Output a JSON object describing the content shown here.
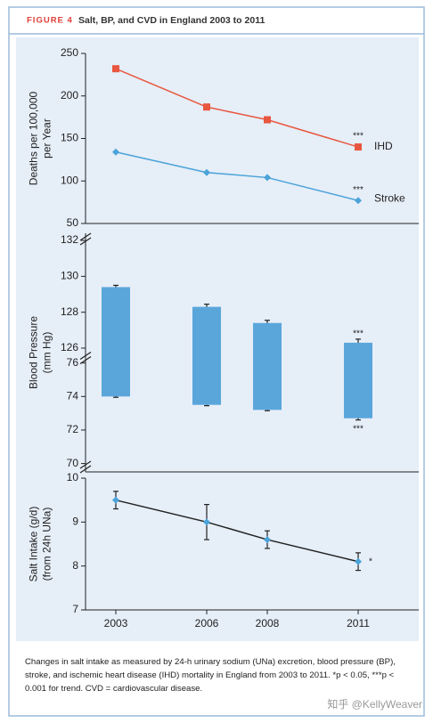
{
  "figure": {
    "label": "FIGURE 4",
    "title": "Salt, BP, and CVD in England 2003 to 2011"
  },
  "chart_data": [
    {
      "type": "line",
      "ylabel": [
        "Deaths per 100,000",
        "per Year"
      ],
      "x": [
        2003,
        2006,
        2008,
        2011
      ],
      "xlim": [
        2002,
        2013
      ],
      "ylim": [
        50,
        250
      ],
      "yticks": [
        50,
        100,
        150,
        200,
        250
      ],
      "series": [
        {
          "name": "IHD",
          "color": "#e8573f",
          "marker": "square",
          "values": [
            232,
            187,
            172,
            140
          ],
          "annotation": "***"
        },
        {
          "name": "Stroke",
          "color": "#4aa3d9",
          "marker": "diamond",
          "values": [
            134,
            110,
            104,
            77
          ],
          "annotation": "***"
        }
      ]
    },
    {
      "type": "floating_bar",
      "ylabel": [
        "Blood Pressure",
        "(mm Hg)"
      ],
      "x": [
        2003,
        2006,
        2008,
        2011
      ],
      "xlim": [
        2002,
        2013
      ],
      "ylim": [
        125.7,
        132.4
      ],
      "yticks": [
        126,
        128,
        130,
        132
      ],
      "ylim_lower": [
        69.5,
        76.3
      ],
      "yticks_lower": [
        70,
        72,
        74,
        76
      ],
      "color": "#5aa6db",
      "series": [
        {
          "values": [
            129.4,
            128.3,
            127.4,
            126.3
          ],
          "errors": [
            0.1,
            0.15,
            0.15,
            0.2
          ]
        },
        {
          "values": [
            74.0,
            73.5,
            73.2,
            72.7
          ],
          "errors": [
            0.05,
            0.05,
            0.05,
            0.1
          ]
        }
      ],
      "annotations": [
        "***",
        "***"
      ]
    },
    {
      "type": "line",
      "ylabel": [
        "Salt Intake (g/d)",
        "(from 24h UNa)"
      ],
      "x": [
        2003,
        2006,
        2008,
        2011
      ],
      "xlim": [
        2002,
        2013
      ],
      "xticks": [
        2003,
        2006,
        2008,
        2011
      ],
      "ylim": [
        7,
        10
      ],
      "yticks": [
        7,
        8,
        9,
        10
      ],
      "series": [
        {
          "color": "#222222",
          "marker_color": "#4aa3d9",
          "marker": "diamond",
          "values": [
            9.5,
            9.0,
            8.6,
            8.1
          ],
          "errors": [
            0.2,
            0.4,
            0.2,
            0.2
          ],
          "annotation": "*"
        }
      ]
    }
  ],
  "caption": "Changes in salt intake as measured by 24-h urinary sodium (UNa) excretion, blood pressure (BP), stroke, and ischemic heart disease (IHD) mortality in England from 2003 to 2011. *p < 0.05, ***p < 0.001 for trend. CVD = cardiovascular disease.",
  "watermark": "知乎 @KellyWeaver"
}
